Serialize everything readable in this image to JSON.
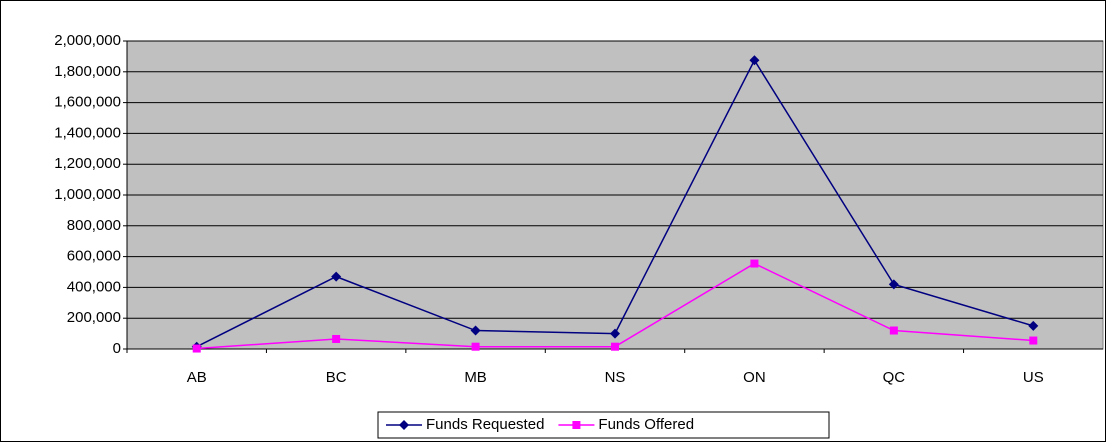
{
  "chart_data": {
    "type": "line",
    "categories": [
      "AB",
      "BC",
      "MB",
      "NS",
      "ON",
      "QC",
      "US"
    ],
    "series": [
      {
        "name": "Funds Requested",
        "color": "#000080",
        "marker": "diamond",
        "values": [
          15000,
          470000,
          120000,
          100000,
          1875000,
          420000,
          150000
        ]
      },
      {
        "name": "Funds Offered",
        "color": "#ff00ff",
        "marker": "square",
        "values": [
          3000,
          65000,
          15000,
          15000,
          555000,
          120000,
          55000
        ]
      }
    ],
    "ylim": [
      0,
      2000000
    ],
    "yticks": [
      0,
      {
        "value": 200000,
        "label": "200,000"
      },
      {
        "value": 400000,
        "label": "400,000"
      },
      {
        "value": 600000,
        "label": "600,000"
      },
      {
        "value": 800000,
        "label": "800,000"
      },
      {
        "value": 1000000,
        "label": "1,000,000"
      },
      {
        "value": 1200000,
        "label": "1,200,000"
      },
      {
        "value": 1400000,
        "label": "1,400,000"
      },
      {
        "value": 1600000,
        "label": "1,600,000"
      },
      {
        "value": 1800000,
        "label": "1,800,000"
      },
      {
        "value": 2000000,
        "label": "2,000,000"
      }
    ],
    "grid": true,
    "legend": "bottom"
  }
}
